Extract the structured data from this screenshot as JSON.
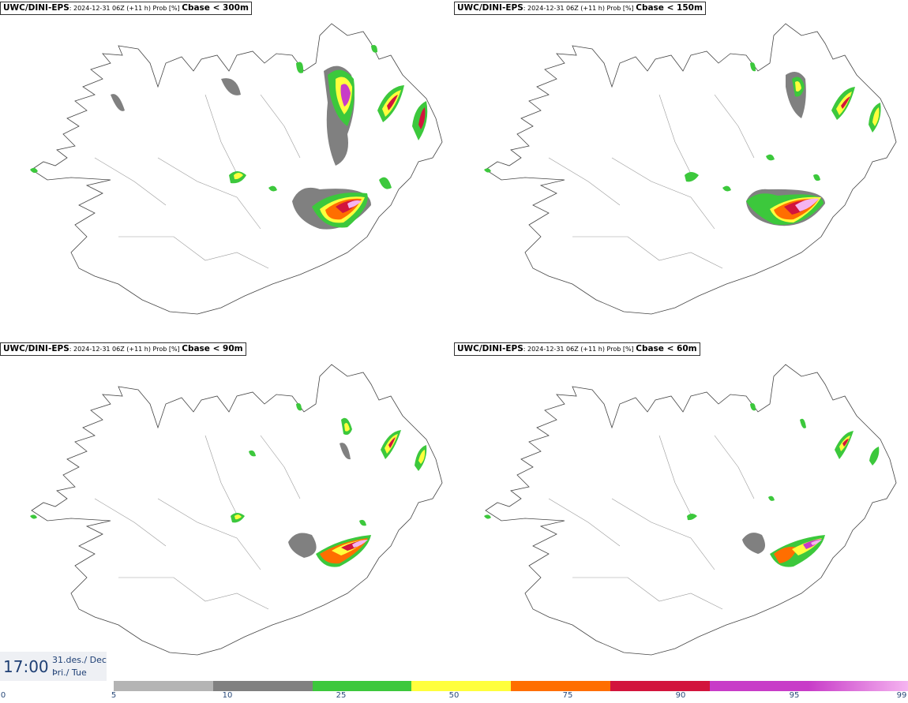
{
  "panels": [
    {
      "model": "UWC/DINI-EPS",
      "meta": ": 2024-12-31 06Z (+11 h) Prob [%] ",
      "label": "Cbase < 300m"
    },
    {
      "model": "UWC/DINI-EPS",
      "meta": ": 2024-12-31 06Z (+11 h) Prob [%] ",
      "label": "Cbase < 150m"
    },
    {
      "model": "UWC/DINI-EPS",
      "meta": ": 2024-12-31 06Z (+11 h) Prob [%] ",
      "label": "Cbase < 90m"
    },
    {
      "model": "UWC/DINI-EPS",
      "meta": ": 2024-12-31 06Z (+11 h) Prob [%] ",
      "label": "Cbase < 60m"
    }
  ],
  "valid_time": {
    "time": "17:00",
    "date_line": "31.des./ Dec",
    "day_line": "Þri./ Tue"
  },
  "legend": {
    "ticks": [
      "0",
      "5",
      "10",
      "25",
      "50",
      "75",
      "90",
      "95",
      "99"
    ],
    "colors": [
      "#b4b4b4",
      "#808080",
      "#3cc83c",
      "#ffff3c",
      "#ff6e00",
      "#d2143c",
      "#c83cc8",
      "#f5b4f0"
    ]
  }
}
